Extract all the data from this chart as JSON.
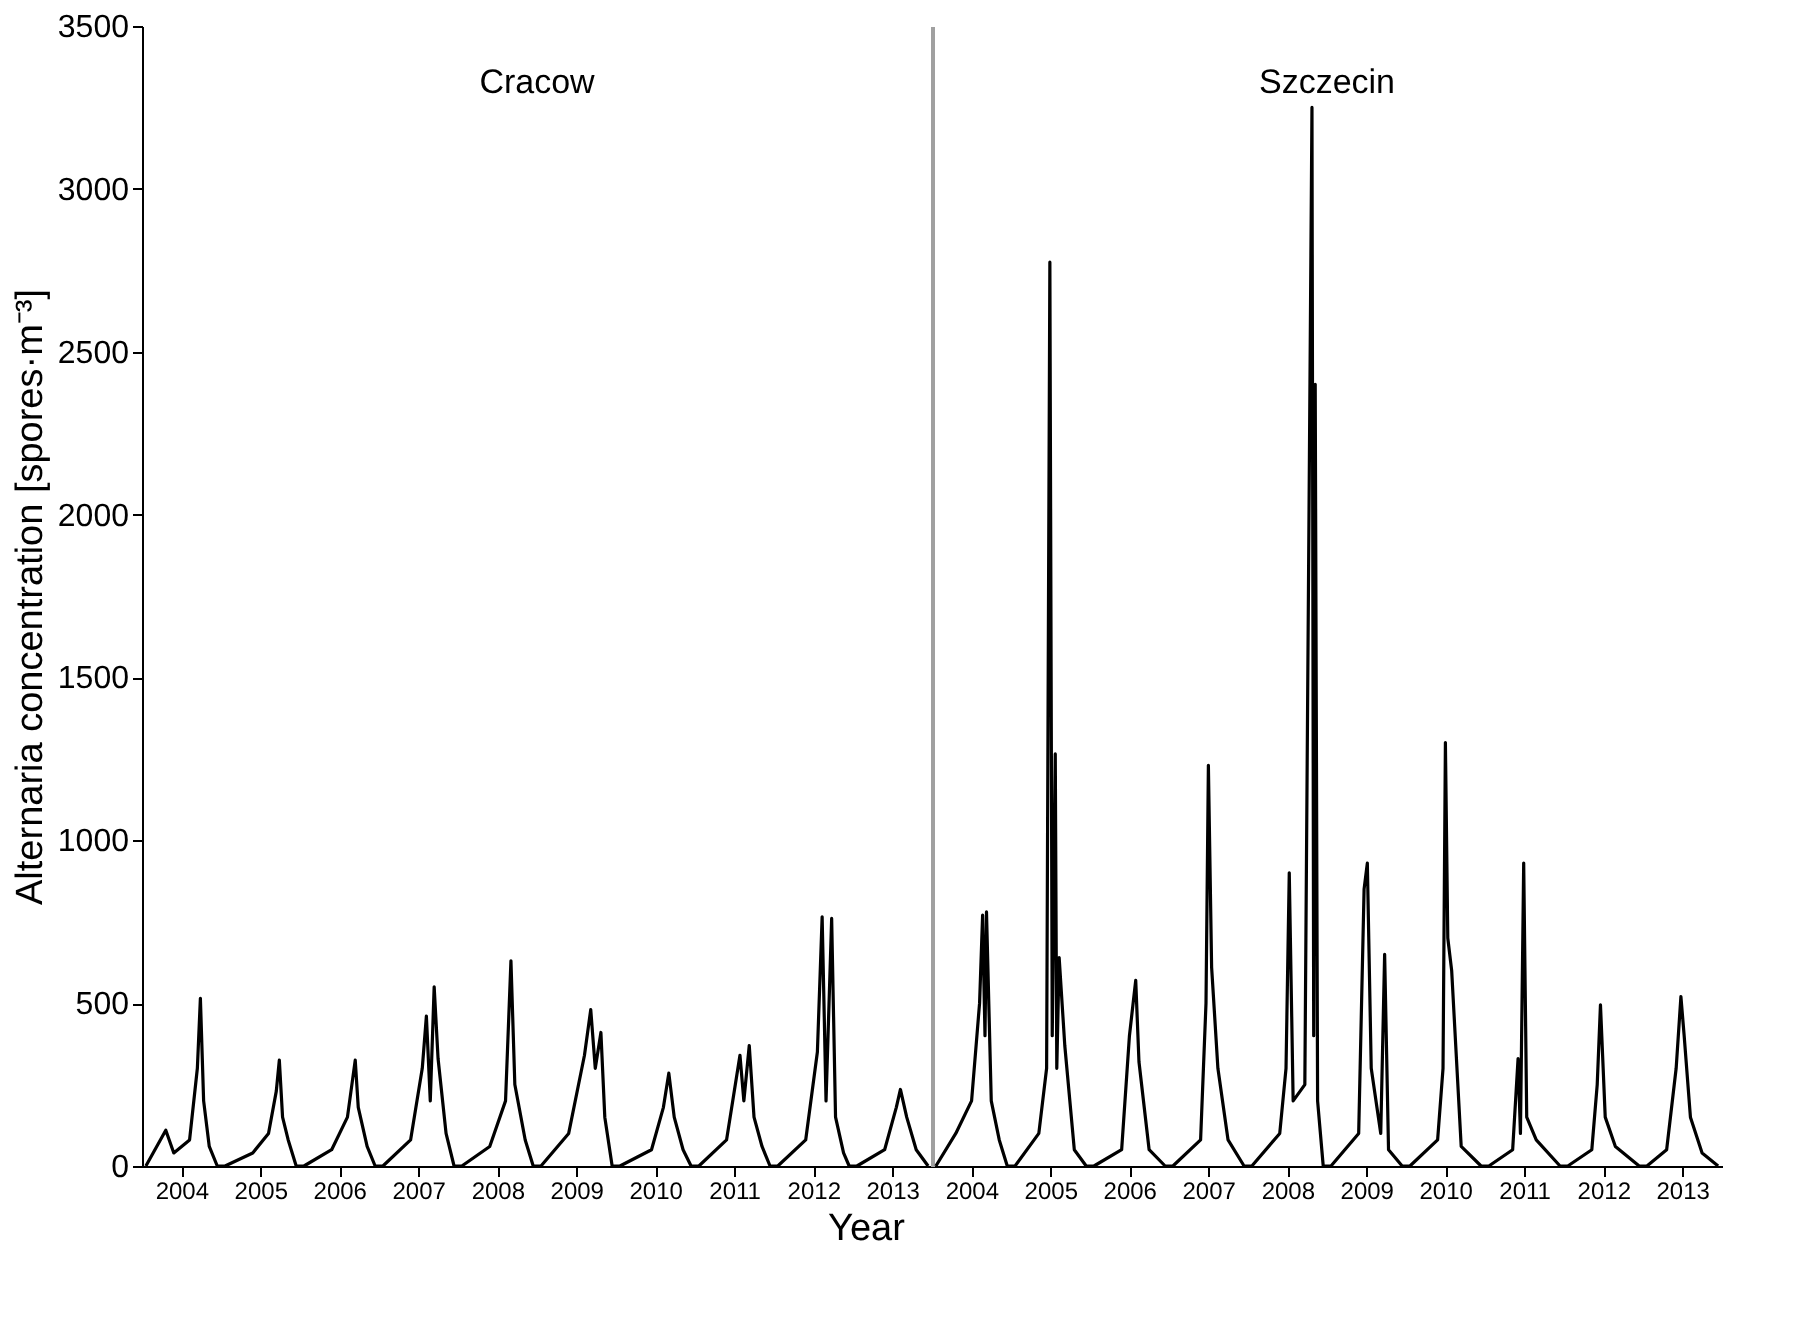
{
  "chart_data": [
    {
      "type": "line",
      "xlabel": "Year",
      "ylabel": "Alternaria concentration [spores·m⁻³]",
      "annotations": [
        "Cracow"
      ],
      "xlim": [
        "2004-01-01",
        "2014-01-01"
      ],
      "xticks": [
        {
          "value": "2004-07-01",
          "label": "2004"
        },
        {
          "value": "2005-07-01",
          "label": "2005"
        },
        {
          "value": "2006-07-01",
          "label": "2006"
        },
        {
          "value": "2007-07-01",
          "label": "2007"
        },
        {
          "value": "2008-07-01",
          "label": "2008"
        },
        {
          "value": "2009-07-01",
          "label": "2009"
        },
        {
          "value": "2010-07-01",
          "label": "2010"
        },
        {
          "value": "2011-07-01",
          "label": "2011"
        },
        {
          "value": "2012-07-01",
          "label": "2012"
        },
        {
          "value": "2013-07-01",
          "label": "2013"
        }
      ],
      "ylim": [
        0,
        3500
      ],
      "yticks": [
        0,
        500,
        1000,
        1500,
        2000,
        2500,
        3000,
        3500
      ],
      "grid": false,
      "marker": "none",
      "line_style": "solid",
      "series": [
        {
          "color": "#000000",
          "x": [
            "2004-01-19",
            "2004-04-20",
            "2004-05-27",
            "2004-08-08",
            "2004-09-13",
            "2004-09-27",
            "2004-10-12",
            "2004-11-07",
            "2004-12-14",
            "2005-01-19",
            "2005-05-27",
            "2005-08-08",
            "2005-09-13",
            "2005-09-27",
            "2005-10-12",
            "2005-11-07",
            "2005-12-14",
            "2006-01-19",
            "2006-05-27",
            "2006-08-08",
            "2006-09-13",
            "2006-09-27",
            "2006-11-07",
            "2006-12-14",
            "2007-01-19",
            "2007-05-27",
            "2007-07-20",
            "2007-08-08",
            "2007-08-26",
            "2007-09-13",
            "2007-10-01",
            "2007-11-07",
            "2007-12-14",
            "2008-01-19",
            "2008-05-27",
            "2008-08-08",
            "2008-09-02",
            "2008-09-20",
            "2008-11-07",
            "2008-12-14",
            "2009-01-19",
            "2009-05-27",
            "2009-08-08",
            "2009-09-06",
            "2009-09-27",
            "2009-10-23",
            "2009-11-10",
            "2009-12-14",
            "2010-01-19",
            "2010-06-14",
            "2010-08-08",
            "2010-09-02",
            "2010-09-27",
            "2010-11-07",
            "2010-12-14",
            "2011-01-19",
            "2011-05-27",
            "2011-07-28",
            "2011-08-15",
            "2011-09-09",
            "2011-10-01",
            "2011-11-07",
            "2011-12-14",
            "2012-01-19",
            "2012-05-27",
            "2012-07-20",
            "2012-08-11",
            "2012-08-29",
            "2012-09-24",
            "2012-10-12",
            "2012-11-18",
            "2012-12-14",
            "2013-01-19",
            "2013-05-27",
            "2013-07-20",
            "2013-08-08",
            "2013-09-06",
            "2013-10-20",
            "2013-12-14"
          ],
          "values": [
            0,
            110,
            40,
            80,
            300,
            515,
            200,
            60,
            0,
            0,
            40,
            100,
            230,
            325,
            150,
            80,
            0,
            0,
            50,
            150,
            325,
            180,
            60,
            0,
            0,
            80,
            300,
            460,
            200,
            550,
            330,
            100,
            0,
            0,
            60,
            200,
            630,
            250,
            80,
            0,
            0,
            100,
            340,
            480,
            300,
            410,
            150,
            0,
            0,
            50,
            180,
            285,
            150,
            50,
            0,
            0,
            80,
            340,
            200,
            370,
            150,
            60,
            0,
            0,
            80,
            350,
            765,
            200,
            760,
            150,
            40,
            0,
            0,
            50,
            180,
            235,
            150,
            50,
            0
          ]
        }
      ]
    },
    {
      "type": "line",
      "annotations": [
        "Szczecin"
      ],
      "tick_labels": "x",
      "xlim": [
        "2004-01-01",
        "2014-01-01"
      ],
      "xticks": [
        {
          "value": "2004-07-01",
          "label": "2004"
        },
        {
          "value": "2005-07-01",
          "label": "2005"
        },
        {
          "value": "2006-07-01",
          "label": "2006"
        },
        {
          "value": "2007-07-01",
          "label": "2007"
        },
        {
          "value": "2008-07-01",
          "label": "2008"
        },
        {
          "value": "2009-07-01",
          "label": "2009"
        },
        {
          "value": "2010-07-01",
          "label": "2010"
        },
        {
          "value": "2011-07-01",
          "label": "2011"
        },
        {
          "value": "2012-07-01",
          "label": "2012"
        },
        {
          "value": "2013-07-01",
          "label": "2013"
        }
      ],
      "ylim": [
        0,
        3500
      ],
      "grid": false,
      "marker": "none",
      "line_style": "solid",
      "series": [
        {
          "color": "#000000",
          "x": [
            "2004-01-19",
            "2004-04-20",
            "2004-07-02",
            "2004-08-08",
            "2004-08-22",
            "2004-09-02",
            "2004-09-09",
            "2004-10-01",
            "2004-11-07",
            "2004-12-14",
            "2005-01-19",
            "2005-05-09",
            "2005-06-14",
            "2005-06-29",
            "2005-07-10",
            "2005-07-24",
            "2005-07-31",
            "2005-08-11",
            "2005-09-06",
            "2005-10-20",
            "2005-12-14",
            "2006-01-19",
            "2006-05-27",
            "2006-07-02",
            "2006-07-31",
            "2006-08-15",
            "2006-10-01",
            "2006-12-14",
            "2007-01-19",
            "2007-05-27",
            "2007-06-21",
            "2007-07-02",
            "2007-07-17",
            "2007-08-15",
            "2007-10-01",
            "2007-12-14",
            "2008-01-19",
            "2008-05-27",
            "2008-06-25",
            "2008-07-10",
            "2008-07-28",
            "2008-09-20",
            "2008-10-23",
            "2008-10-31",
            "2008-11-07",
            "2008-11-18",
            "2008-12-14",
            "2009-01-19",
            "2009-05-27",
            "2009-06-21",
            "2009-07-06",
            "2009-07-24",
            "2009-09-06",
            "2009-09-24",
            "2009-10-12",
            "2009-12-14",
            "2010-01-19",
            "2010-05-27",
            "2010-06-21",
            "2010-07-02",
            "2010-07-13",
            "2010-07-31",
            "2010-09-13",
            "2010-12-14",
            "2011-01-19",
            "2011-05-09",
            "2011-06-03",
            "2011-06-14",
            "2011-06-29",
            "2011-07-13",
            "2011-08-26",
            "2011-12-14",
            "2012-01-19",
            "2012-05-09",
            "2012-06-03",
            "2012-06-18",
            "2012-07-10",
            "2012-08-26",
            "2012-12-14",
            "2013-01-19",
            "2013-04-20",
            "2013-06-03",
            "2013-06-25",
            "2013-07-10",
            "2013-08-08",
            "2013-10-01",
            "2013-12-14"
          ],
          "values": [
            0,
            100,
            200,
            500,
            770,
            400,
            780,
            200,
            80,
            0,
            0,
            100,
            300,
            2775,
            400,
            1265,
            300,
            640,
            370,
            50,
            0,
            0,
            50,
            400,
            570,
            320,
            50,
            0,
            0,
            80,
            500,
            1230,
            610,
            300,
            80,
            0,
            0,
            100,
            300,
            900,
            200,
            250,
            3250,
            400,
            2400,
            200,
            0,
            0,
            100,
            850,
            930,
            300,
            100,
            650,
            50,
            0,
            0,
            80,
            300,
            1300,
            700,
            600,
            60,
            0,
            0,
            50,
            330,
            100,
            930,
            150,
            80,
            0,
            0,
            50,
            250,
            495,
            150,
            60,
            0,
            0,
            50,
            300,
            520,
            400,
            150,
            40,
            0
          ]
        }
      ]
    }
  ]
}
